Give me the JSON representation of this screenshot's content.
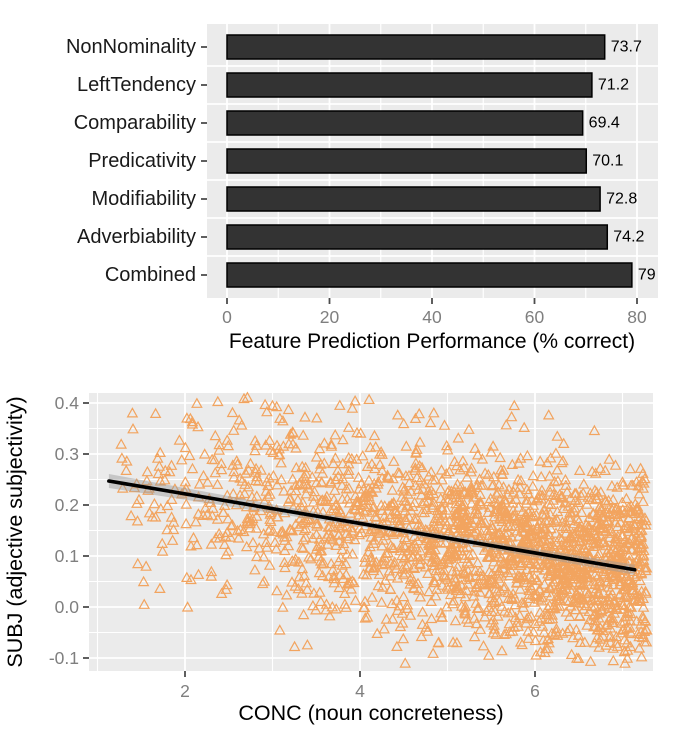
{
  "figure": {
    "background": "#FFFFFF",
    "panel_bg": "#EBEBEB",
    "grid_color": "#FFFFFF"
  },
  "chart_data": [
    {
      "type": "bar",
      "orientation": "horizontal",
      "categories": [
        "NonNominality",
        "LeftTendency",
        "Comparability",
        "Predicativity",
        "Modifiability",
        "Adverbiability",
        "Combined"
      ],
      "values": [
        73.7,
        71.2,
        69.4,
        70.1,
        72.8,
        74.2,
        79.0
      ],
      "value_labels": [
        "73.7",
        "71.2",
        "69.4",
        "70.1",
        "72.8",
        "74.2",
        "79"
      ],
      "xlabel": "Feature Prediction Performance (% correct)",
      "ylabel": "",
      "xlim": [
        0,
        84
      ],
      "x_ticks": [
        0,
        20,
        40,
        60,
        80
      ],
      "x_tick_labels": [
        "0",
        "20",
        "40",
        "60",
        "80"
      ],
      "x_minor_ticks": [
        10,
        30,
        50,
        70
      ],
      "grid": true,
      "legend": "none",
      "panel_bg": "#EBEBEB",
      "grid_color": "#FFFFFF",
      "bar_fill": "#333333",
      "bar_stroke": "#000000",
      "tick_label_color": "#7F7F7F",
      "category_label_color": "#1A1A1A",
      "axis_title_color": "#000000",
      "tick_mark_color": "#4D4D4D"
    },
    {
      "type": "scatter",
      "xlabel": "CONC (noun concreteness)",
      "ylabel": "SUBJ (adjective subjectivity)",
      "x_ticks": [
        2,
        4,
        6
      ],
      "x_tick_labels": [
        "2",
        "4",
        "6"
      ],
      "x_minor_ticks": [
        1,
        3,
        5,
        7
      ],
      "y_ticks": [
        0.4,
        0.3,
        0.2,
        0.1,
        0.0,
        -0.1
      ],
      "y_tick_labels": [
        "0.4",
        "0.3",
        "0.2",
        "0.1",
        "0.0",
        "-0.1"
      ],
      "y_minor_ticks": [
        0.35,
        0.25,
        0.15,
        0.05,
        -0.05
      ],
      "xlim": [
        0.9,
        7.35
      ],
      "ylim": [
        -0.125,
        0.42
      ],
      "grid": true,
      "legend": "none",
      "marker": {
        "shape": "open-triangle",
        "color": "#F2A45F",
        "size": 10,
        "stroke_width": 1.2
      },
      "points": {
        "n": 2200,
        "seed": 7,
        "x_min": 1.13,
        "x_max": 7.28,
        "x_power": 0.5,
        "y_intercept": 0.28,
        "y_slope": -0.029,
        "y_noise_sd": 0.092,
        "y_clip": [
          -0.113,
          0.413
        ]
      },
      "regression_line": {
        "x_start": 1.13,
        "y_start": 0.247,
        "x_end": 7.14,
        "y_end": 0.073,
        "color": "#000000",
        "width": 3.6
      },
      "confidence_ribbon": {
        "color": "#999999",
        "opacity": 0.45
      },
      "panel_bg": "#EBEBEB",
      "grid_color": "#FFFFFF",
      "tick_label_color": "#7F7F7F",
      "axis_title_color": "#000000",
      "tick_mark_color": "#4D4D4D"
    }
  ]
}
